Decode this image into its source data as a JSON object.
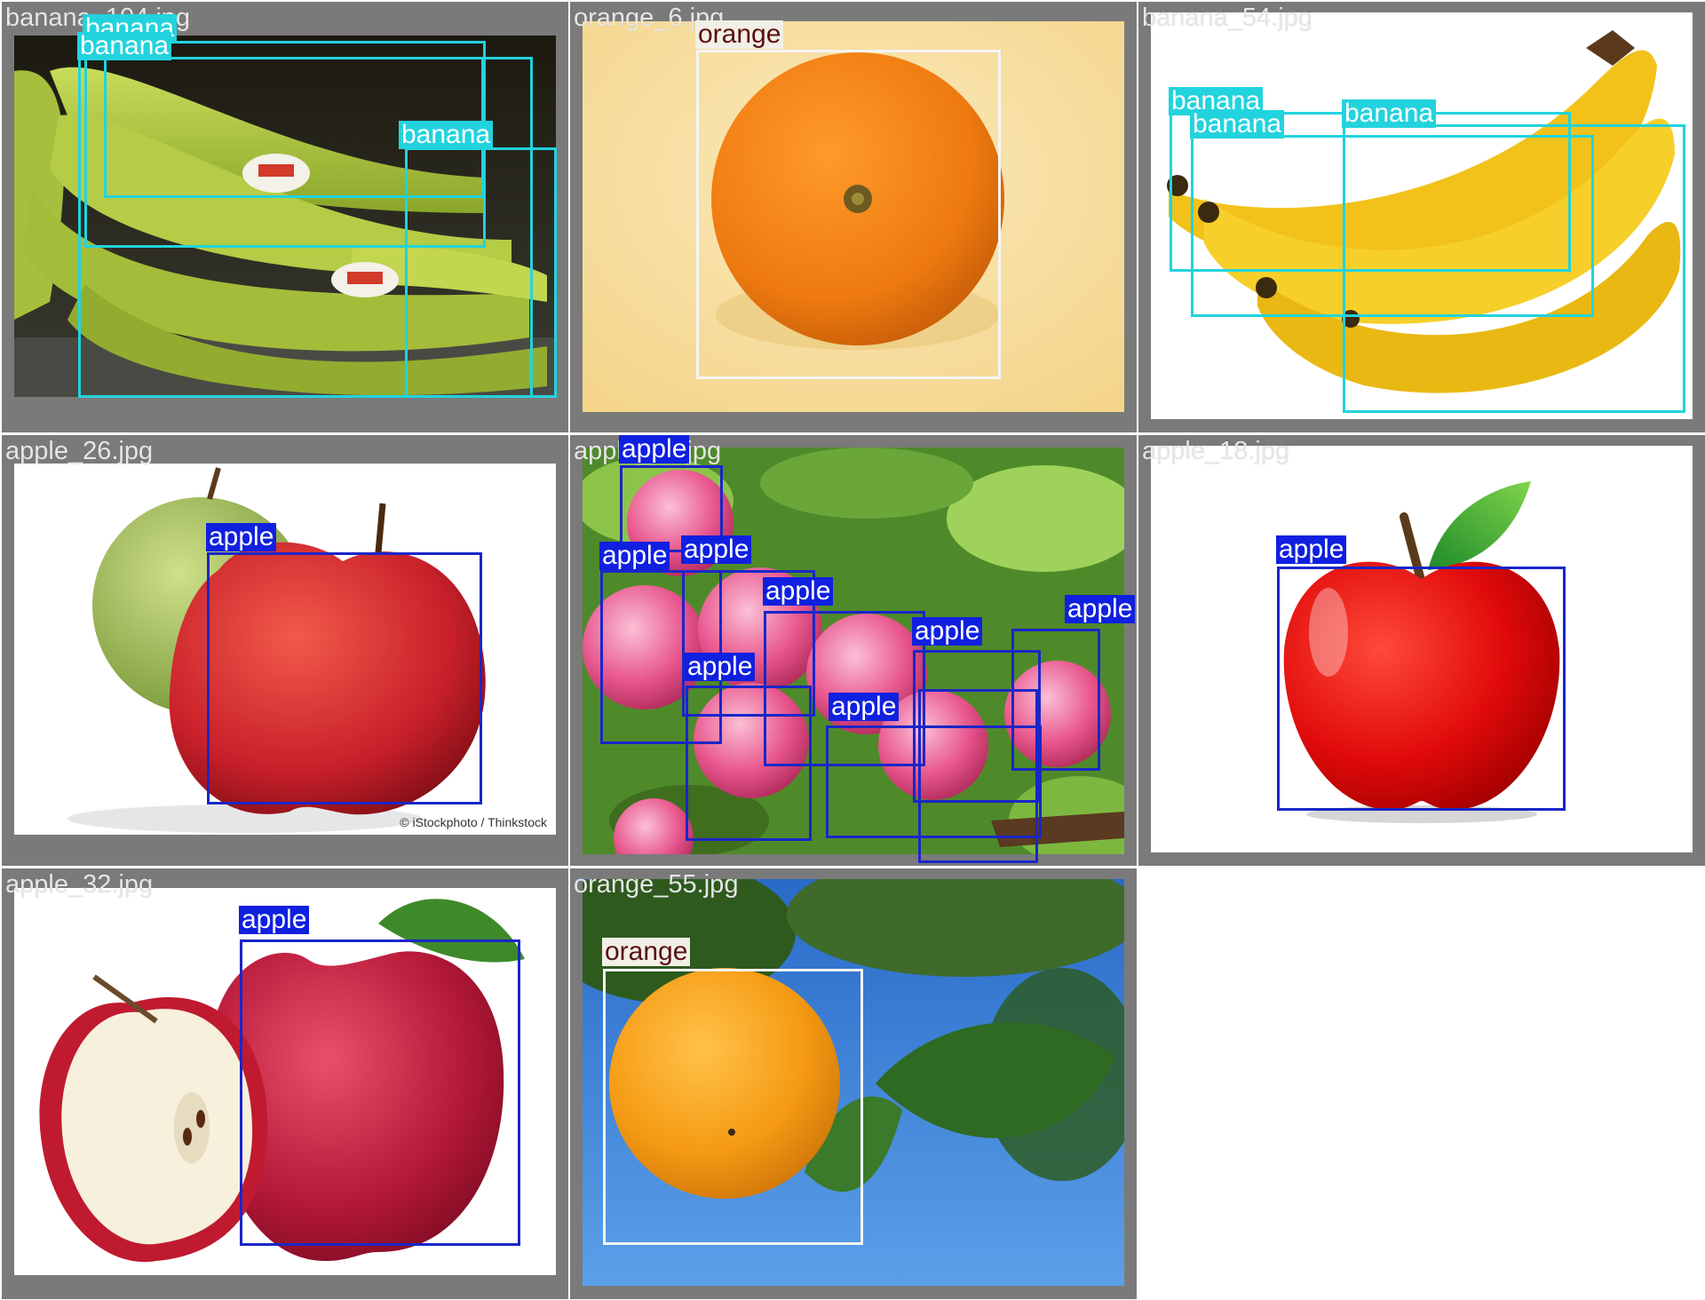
{
  "tiles": [
    {
      "filename": "banana_104.jpg",
      "class": "banana",
      "labels": [
        "banana",
        "banana",
        "banana",
        "banana"
      ]
    },
    {
      "filename": "orange_6.jpg",
      "class": "orange",
      "labels": [
        "orange"
      ]
    },
    {
      "filename": "banana_54.jpg",
      "class": "banana",
      "labels": [
        "banana",
        "banana",
        "banana"
      ]
    },
    {
      "filename": "apple_26.jpg",
      "class": "apple",
      "labels": [
        "apple"
      ],
      "credit": "© iStockphoto / Thinkstock"
    },
    {
      "filename": "apple_24.jpg",
      "class": "apple",
      "labels": [
        "apple",
        "apple",
        "apple",
        "apple",
        "apple",
        "apple",
        "apple",
        "apple"
      ]
    },
    {
      "filename": "apple_18.jpg",
      "class": "apple",
      "labels": [
        "apple"
      ]
    },
    {
      "filename": "apple_32.jpg",
      "class": "apple",
      "labels": [
        "apple"
      ]
    },
    {
      "filename": "orange_55.jpg",
      "class": "orange",
      "labels": [
        "orange"
      ]
    }
  ],
  "colors": {
    "banana": "#22d3dd",
    "apple": "#1020e0",
    "orange": "#f4f4f4",
    "tile_background": "#7a7a7a"
  }
}
